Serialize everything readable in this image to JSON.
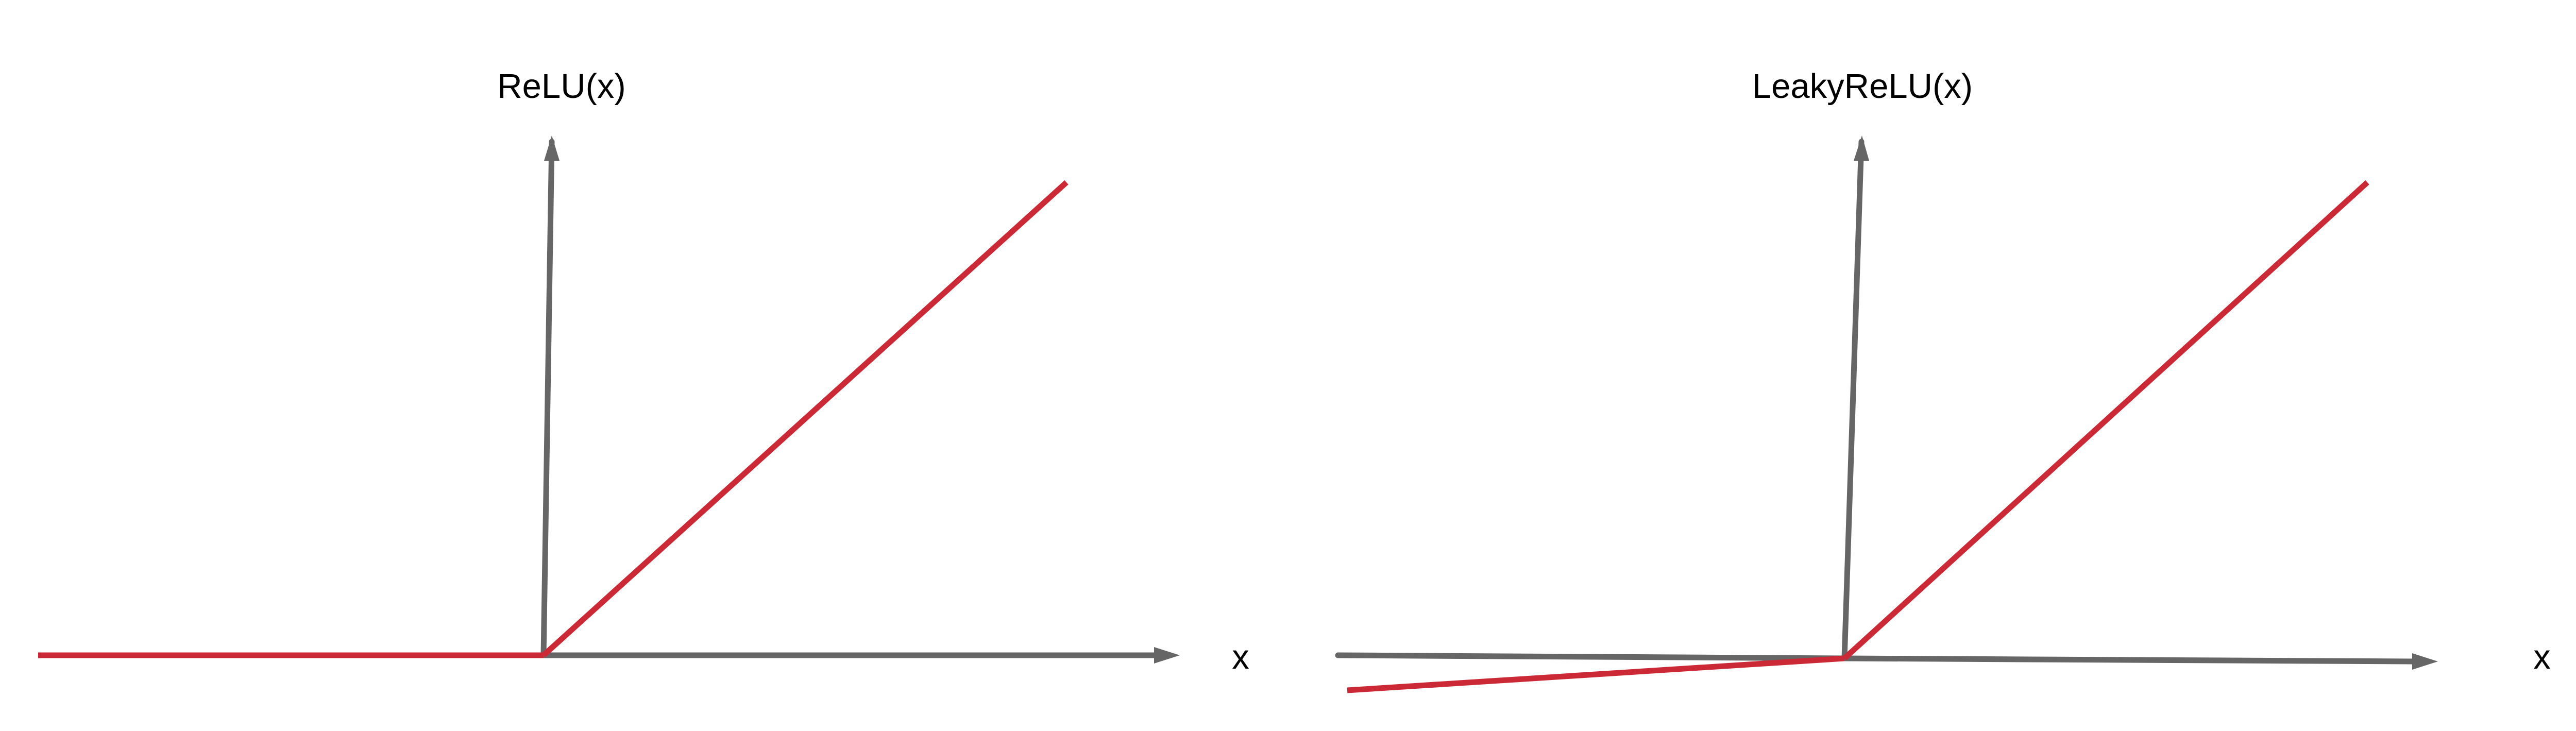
{
  "colors": {
    "axis": "#666666",
    "curve": "#cc2936",
    "text": "#000000"
  },
  "relu_panel": {
    "y_label": "ReLU(x)",
    "x_label": "x",
    "negative_slope": 0
  },
  "leaky_relu_panel": {
    "y_label": "LeakyReLU(x)",
    "x_label": "x",
    "negative_slope": 0.07
  }
}
